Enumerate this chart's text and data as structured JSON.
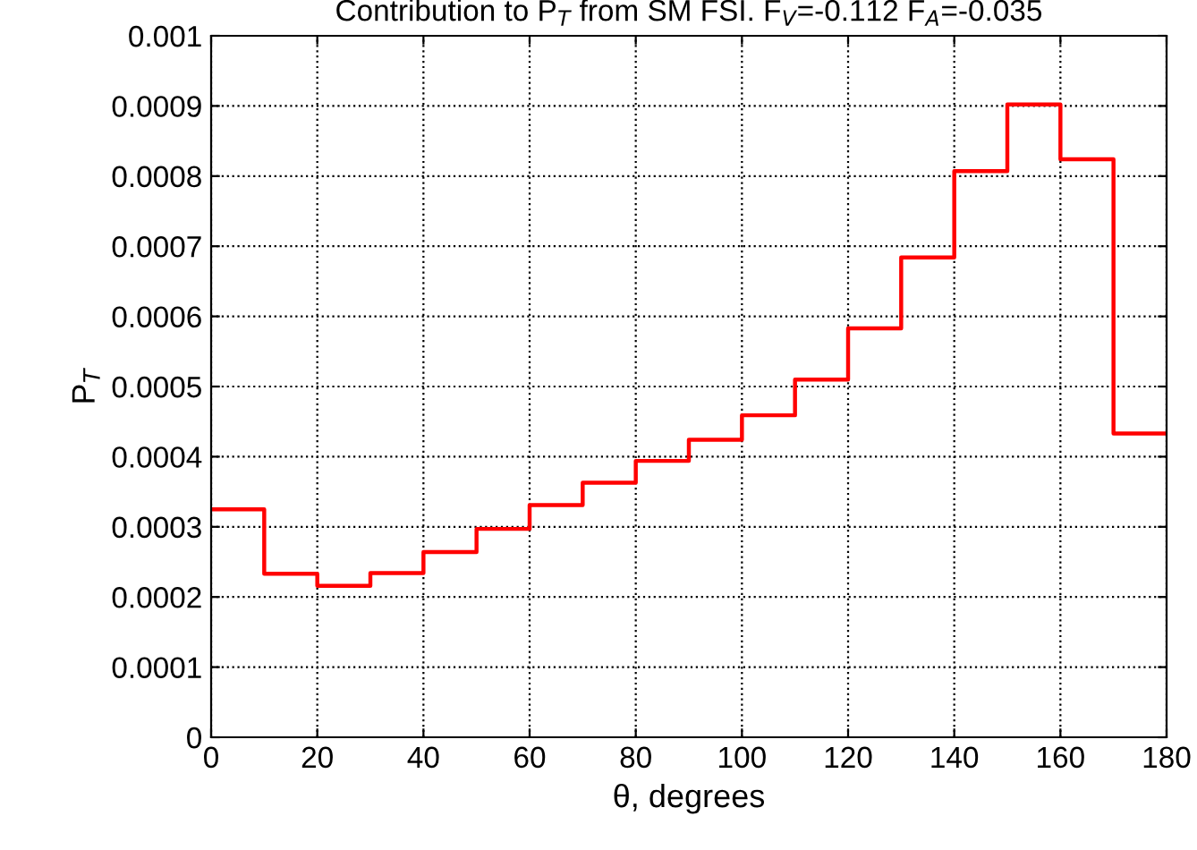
{
  "chart_data": {
    "type": "step",
    "title": "Contribution to P$_{T}$ from SM FSI. F$_{V}$=-0.112 F$_{A}$=-0.035",
    "xlabel": "θ, degrees",
    "ylabel": "P$_{T}$",
    "x": [
      0,
      10,
      20,
      30,
      40,
      50,
      60,
      70,
      80,
      90,
      100,
      110,
      120,
      130,
      140,
      150,
      160,
      170,
      180
    ],
    "series": [
      {
        "color": "#ff0000",
        "values": [
          0.000325,
          0.000233,
          0.000216,
          0.000234,
          0.000264,
          0.000297,
          0.000331,
          0.000363,
          0.000394,
          0.000424,
          0.000459,
          0.00051,
          0.000583,
          0.000684,
          0.000807,
          0.000902,
          0.000824,
          0.000433,
          0.000433
        ]
      }
    ],
    "xlim": [
      0,
      180
    ],
    "ylim": [
      0,
      0.001
    ],
    "xticks": [
      0,
      20,
      40,
      60,
      80,
      100,
      120,
      140,
      160,
      180
    ],
    "yticks": [
      0,
      0.0001,
      0.0002,
      0.0003,
      0.0004,
      0.0005,
      0.0006,
      0.0007,
      0.0008,
      0.0009,
      0.001
    ],
    "grid": true,
    "line_style": "solid"
  }
}
